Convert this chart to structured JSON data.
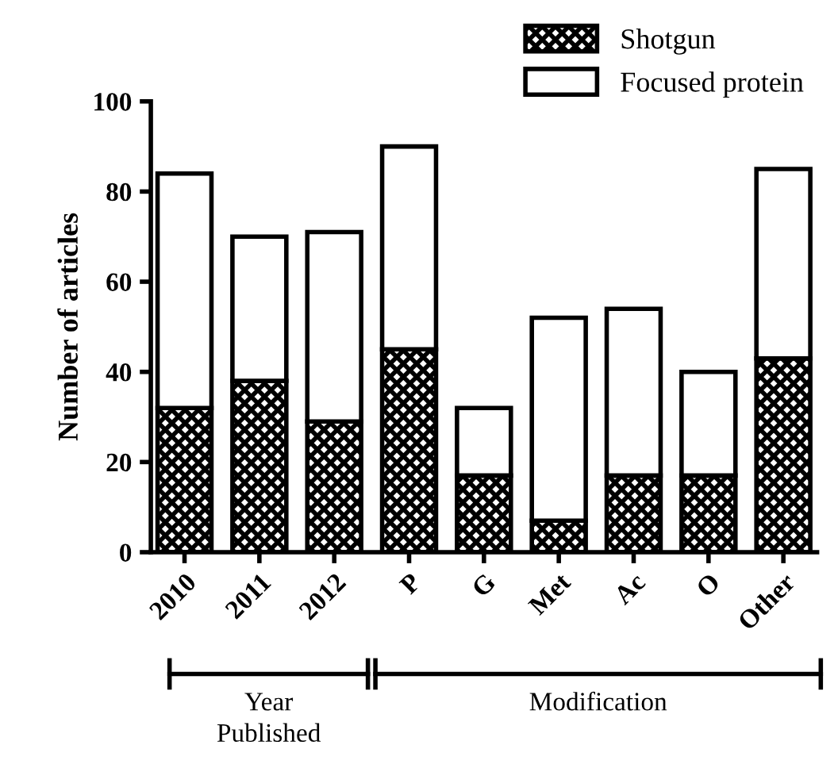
{
  "chart_data": {
    "type": "bar",
    "stacked": true,
    "ylabel": "Number of articles",
    "categories": [
      "2010",
      "2011",
      "2012",
      "P",
      "G",
      "Met",
      "Ac",
      "O",
      "Other"
    ],
    "series": [
      {
        "name": "Shotgun",
        "color": "#000000",
        "values": [
          32,
          38,
          29,
          45,
          17,
          7,
          17,
          17,
          43
        ]
      },
      {
        "name": "Focused protein",
        "color": "#ffffff",
        "values": [
          52,
          32,
          42,
          45,
          15,
          45,
          37,
          23,
          42
        ]
      }
    ],
    "ylim": [
      0,
      100
    ],
    "yticks": [
      0,
      20,
      40,
      60,
      80,
      100
    ],
    "grid": false,
    "legend": "top right",
    "annotations": [
      "Year\nPublished",
      "Modification"
    ]
  }
}
